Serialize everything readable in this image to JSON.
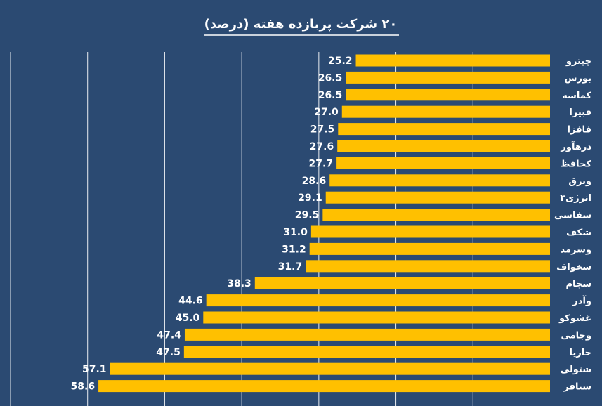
{
  "colors": {
    "background": "#2b4a72",
    "bar": "#ffc000",
    "text": "#ffffff",
    "grid": "#ffffff"
  },
  "chart_data": {
    "type": "bar",
    "orientation": "horizontal",
    "direction": "rtl",
    "title": "۲۰ شرکت پربازده هفته (درصد)",
    "xlabel": "",
    "ylabel": "",
    "xlim": [
      0,
      70
    ],
    "grid": true,
    "legend": "none",
    "categories": [
      "چپترو",
      "بورس",
      "کماسه",
      "فبیرا",
      "فافزا",
      "درهآور",
      "کحافظ",
      "وبرق",
      "انرژی۳",
      "سفاسی",
      "شکف",
      "وسرمد",
      "سخواف",
      "سجام",
      "وآذر",
      "غشوکو",
      "وجامی",
      "حاریا",
      "شتولی",
      "سباقر"
    ],
    "values": [
      25.2,
      26.5,
      26.5,
      27.0,
      27.5,
      27.6,
      27.7,
      28.6,
      29.1,
      29.5,
      31.0,
      31.2,
      31.7,
      38.3,
      44.6,
      45.0,
      47.4,
      47.5,
      57.1,
      58.6
    ],
    "value_labels": [
      "25.2",
      "26.5",
      "26.5",
      "27.0",
      "27.5",
      "27.6",
      "27.7",
      "28.6",
      "29.1",
      "29.5",
      "31.0",
      "31.2",
      "31.7",
      "38.3",
      "44.6",
      "45.0",
      "47.4",
      "47.5",
      "57.1",
      "58.6"
    ]
  }
}
